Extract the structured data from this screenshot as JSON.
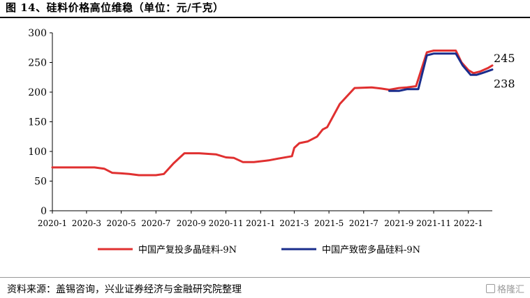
{
  "title": "图 14、硅料价格高位维稳（单位：元/千克）",
  "source": "资料来源：盖锡咨询，兴业证券经济与金融研究院整理",
  "watermark": "格隆汇",
  "chart_data": {
    "type": "line",
    "title": "",
    "xlabel": "",
    "ylabel": "",
    "ylim": [
      0,
      300
    ],
    "yticks": [
      0,
      50,
      100,
      150,
      200,
      250,
      300
    ],
    "xlim": [
      "2020-01",
      "2022-02"
    ],
    "xticks": [
      "2020-1",
      "2020-3",
      "2020-5",
      "2020-7",
      "2020-9",
      "2020-11",
      "2021-1",
      "2021-3",
      "2021-5",
      "2021-7",
      "2021-9",
      "2021-11",
      "2022-1"
    ],
    "legend_position": "bottom",
    "grid": false,
    "series": [
      {
        "name": "中国产复投多晶硅料-9N",
        "color": "#e03030",
        "points": [
          [
            "2020-01-01",
            73
          ],
          [
            "2020-03-15",
            73
          ],
          [
            "2020-04-01",
            71
          ],
          [
            "2020-04-15",
            64
          ],
          [
            "2020-05-01",
            63
          ],
          [
            "2020-05-15",
            62
          ],
          [
            "2020-06-01",
            60
          ],
          [
            "2020-07-01",
            60
          ],
          [
            "2020-07-15",
            62
          ],
          [
            "2020-08-01",
            80
          ],
          [
            "2020-08-20",
            97
          ],
          [
            "2020-09-15",
            97
          ],
          [
            "2020-10-15",
            95
          ],
          [
            "2020-11-01",
            90
          ],
          [
            "2020-11-15",
            89
          ],
          [
            "2020-12-01",
            82
          ],
          [
            "2020-12-20",
            82
          ],
          [
            "2021-01-15",
            85
          ],
          [
            "2021-02-01",
            88
          ],
          [
            "2021-02-25",
            92
          ],
          [
            "2021-03-01",
            106
          ],
          [
            "2021-03-10",
            114
          ],
          [
            "2021-03-25",
            117
          ],
          [
            "2021-04-10",
            125
          ],
          [
            "2021-04-20",
            137
          ],
          [
            "2021-04-28",
            141
          ],
          [
            "2021-05-20",
            180
          ],
          [
            "2021-06-15",
            207
          ],
          [
            "2021-07-15",
            208
          ],
          [
            "2021-08-01",
            206
          ],
          [
            "2021-08-15",
            204
          ],
          [
            "2021-09-01",
            207
          ],
          [
            "2021-09-15",
            208
          ],
          [
            "2021-10-01",
            210
          ],
          [
            "2021-10-20",
            267
          ],
          [
            "2021-11-01",
            270
          ],
          [
            "2021-12-10",
            270
          ],
          [
            "2021-12-20",
            250
          ],
          [
            "2022-01-01",
            237
          ],
          [
            "2022-01-10",
            232
          ],
          [
            "2022-01-22",
            235
          ],
          [
            "2022-02-05",
            241
          ],
          [
            "2022-02-12",
            245
          ]
        ]
      },
      {
        "name": "中国产致密多晶硅料-9N",
        "color": "#1a2d8c",
        "points": [
          [
            "2021-08-15",
            202
          ],
          [
            "2021-09-01",
            202
          ],
          [
            "2021-09-15",
            205
          ],
          [
            "2021-10-05",
            205
          ],
          [
            "2021-10-20",
            262
          ],
          [
            "2021-11-01",
            265
          ],
          [
            "2021-12-10",
            265
          ],
          [
            "2021-12-22",
            245
          ],
          [
            "2022-01-05",
            229
          ],
          [
            "2022-01-15",
            229
          ],
          [
            "2022-01-25",
            232
          ],
          [
            "2022-02-12",
            238
          ]
        ]
      }
    ],
    "annotations": [
      {
        "text": "245",
        "series": 0
      },
      {
        "text": "238",
        "series": 1
      }
    ]
  }
}
